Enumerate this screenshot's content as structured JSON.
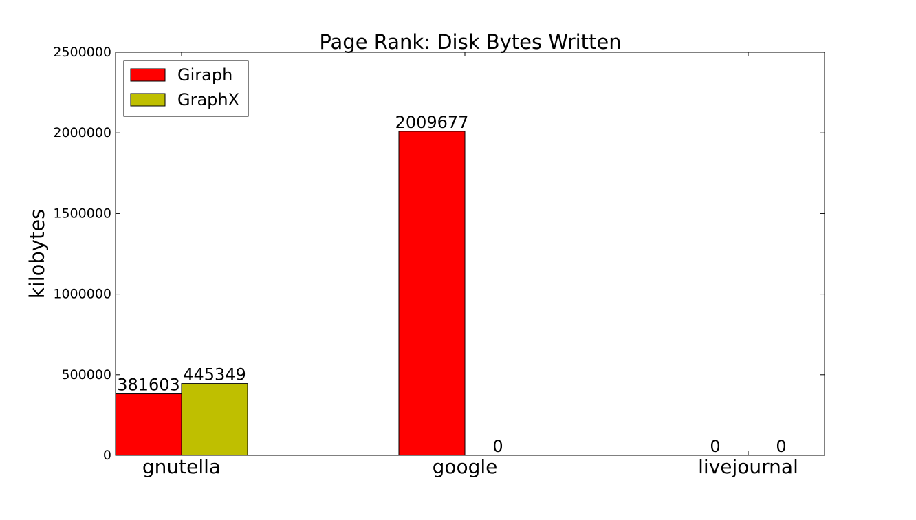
{
  "chart_data": {
    "type": "bar",
    "title": "Page Rank: Disk Bytes Written",
    "xlabel": "",
    "ylabel": "kilobytes",
    "categories": [
      "gnutella",
      "google",
      "livejournal"
    ],
    "series": [
      {
        "name": "Giraph",
        "values": [
          381603,
          2009677,
          0
        ],
        "labels": [
          "381603",
          "2009677",
          "0"
        ],
        "color": "#ff0000"
      },
      {
        "name": "GraphX",
        "values": [
          445349,
          0,
          0
        ],
        "labels": [
          "445349",
          "0",
          "0"
        ],
        "color": "#bfbf00"
      }
    ],
    "ylim": [
      0,
      2500000
    ],
    "yticks": [
      0,
      500000,
      1000000,
      1500000,
      2000000,
      2500000
    ],
    "ytick_labels": [
      "0",
      "500000",
      "1000000",
      "1500000",
      "2000000",
      "2500000"
    ],
    "grid": false,
    "legend": "top-left"
  }
}
